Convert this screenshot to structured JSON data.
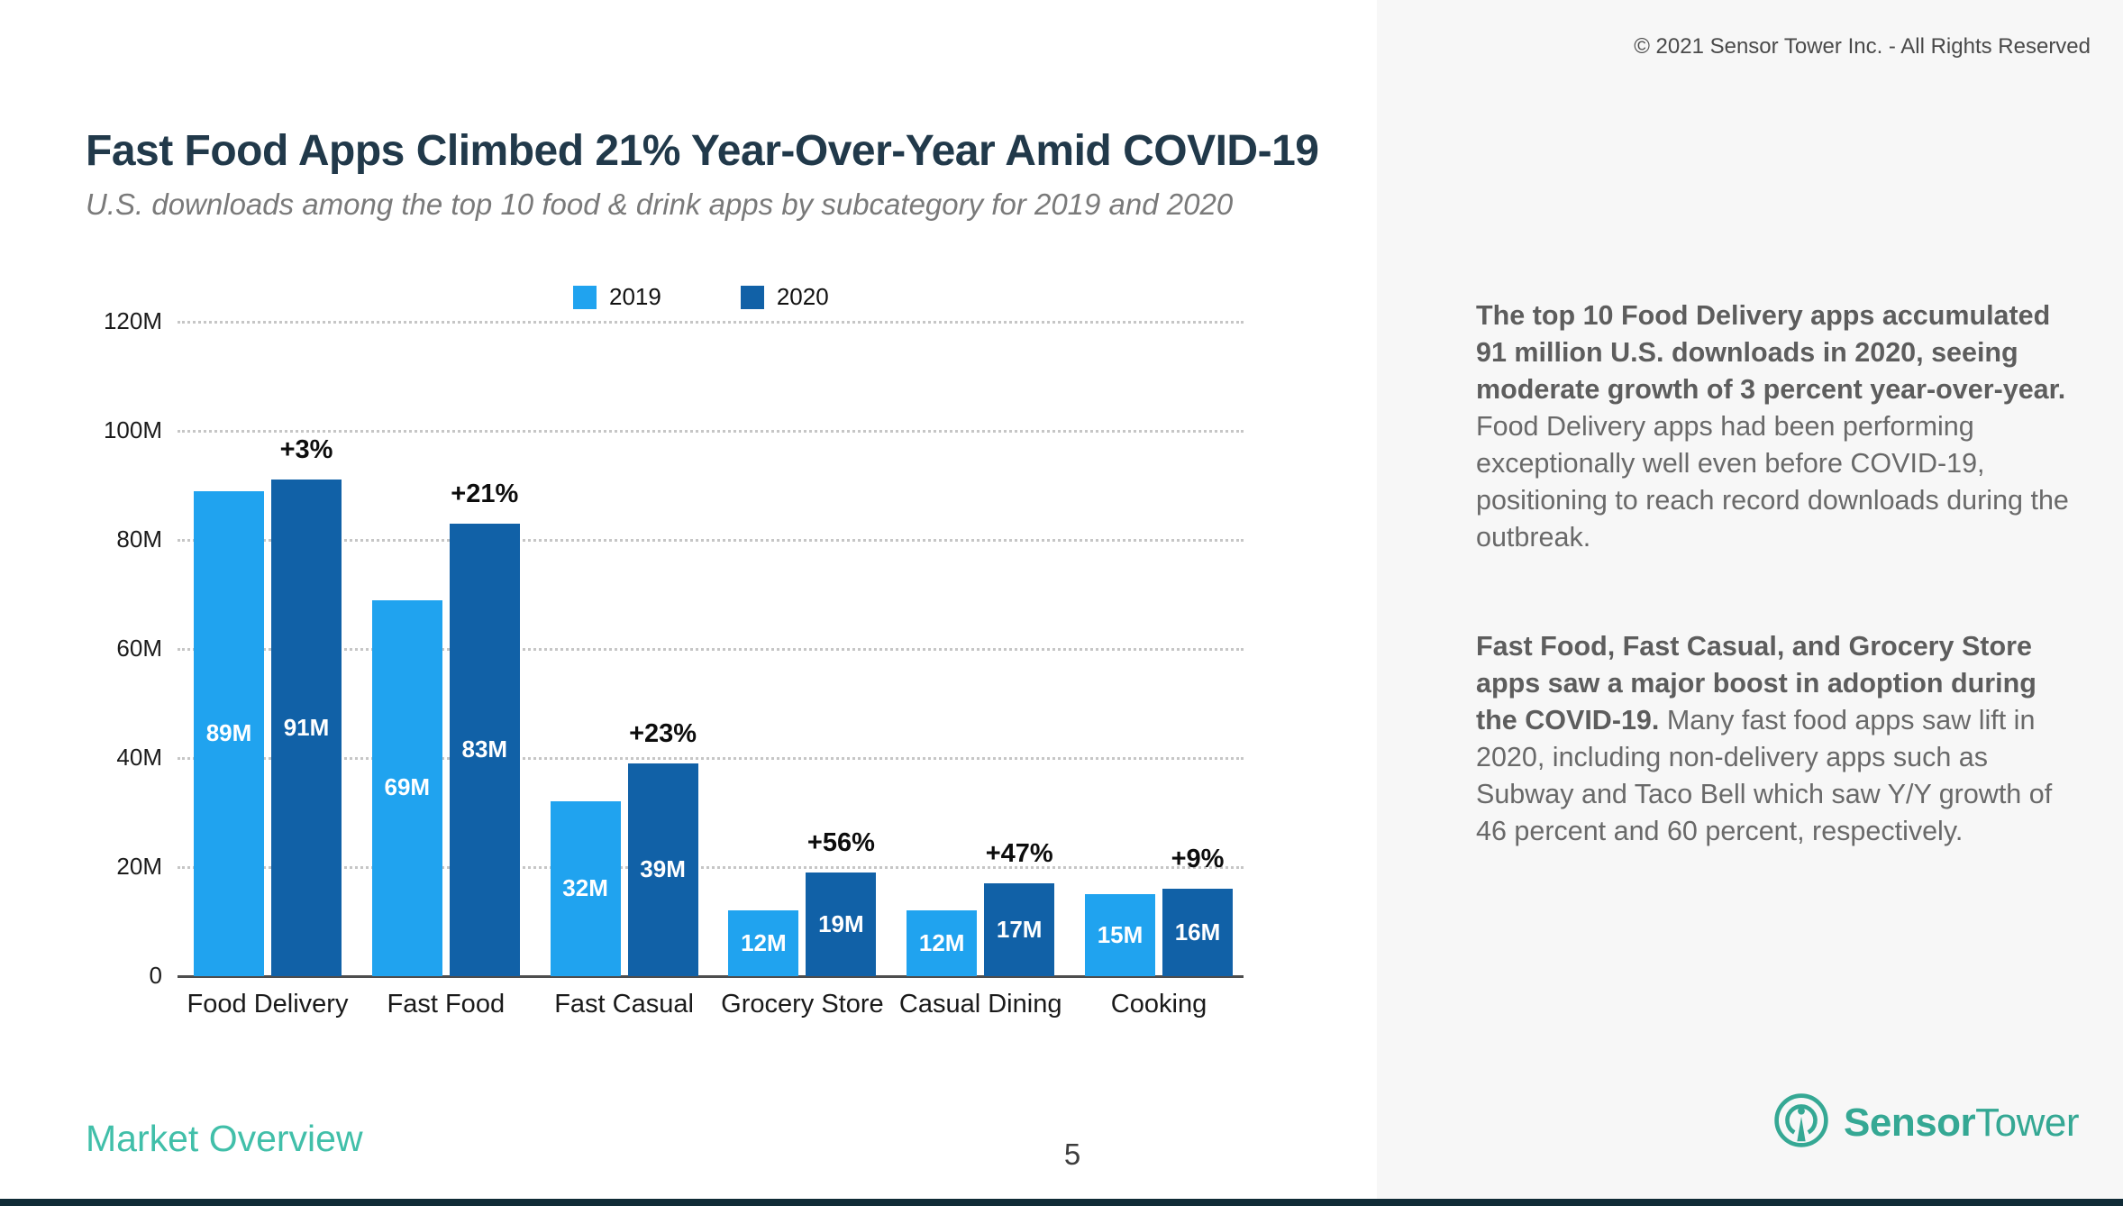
{
  "header": {
    "copyright": "© 2021 Sensor Tower Inc. - All Rights Reserved"
  },
  "slide": {
    "title": "Fast Food Apps Climbed 21% Year-Over-Year Amid COVID-19",
    "subtitle": "U.S. downloads among the top 10 food & drink apps by subcategory for 2019 and 2020"
  },
  "chart_data": {
    "type": "bar",
    "title": "U.S. downloads among the top 10 food & drink apps by subcategory for 2019 and 2020",
    "categories": [
      "Food Delivery",
      "Fast Food",
      "Fast Casual",
      "Grocery Store",
      "Casual Dining",
      "Cooking"
    ],
    "series": [
      {
        "name": "2019",
        "color": "#20a3ef",
        "values": [
          89,
          69,
          32,
          12,
          12,
          15
        ],
        "labels": [
          "89M",
          "69M",
          "32M",
          "12M",
          "12M",
          "15M"
        ]
      },
      {
        "name": "2020",
        "color": "#1161a7",
        "values": [
          91,
          83,
          39,
          19,
          17,
          16
        ],
        "labels": [
          "91M",
          "83M",
          "39M",
          "19M",
          "17M",
          "16M"
        ]
      }
    ],
    "pct_change": [
      "+3%",
      "+21%",
      "+23%",
      "+56%",
      "+47%",
      "+9%"
    ],
    "y_ticks": [
      "120M",
      "100M",
      "80M",
      "60M",
      "40M",
      "20M",
      "0"
    ],
    "ylim": [
      0,
      120
    ],
    "unit": "M downloads",
    "grid": "dotted horizontal",
    "legend_position": "top-center"
  },
  "sidebar": {
    "paragraphs": [
      {
        "bold": "The top 10 Food Delivery apps accumulated 91 million U.S. downloads in 2020, seeing moderate growth of 3 percent year-over-year.",
        "regular": " Food Delivery apps had been performing exceptionally well even before COVID-19, positioning to reach record downloads during the outbreak."
      },
      {
        "bold": "Fast Food, Fast Casual, and Grocery Store apps saw a major boost in adoption during the COVID-19.",
        "regular": " Many fast food apps saw lift in 2020, including non-delivery apps such as Subway and Taco Bell which saw Y/Y growth of 46 percent and 60 percent, respectively."
      }
    ]
  },
  "footer": {
    "section_label": "Market Overview",
    "page_number": "5",
    "brand_bold": "Sensor",
    "brand_regular": "Tower"
  },
  "colors": {
    "accent_teal": "#35a894",
    "bar_2019": "#20a3ef",
    "bar_2020": "#1161a7",
    "panel_bg": "#f7f7f7",
    "title_navy": "#21394a"
  }
}
